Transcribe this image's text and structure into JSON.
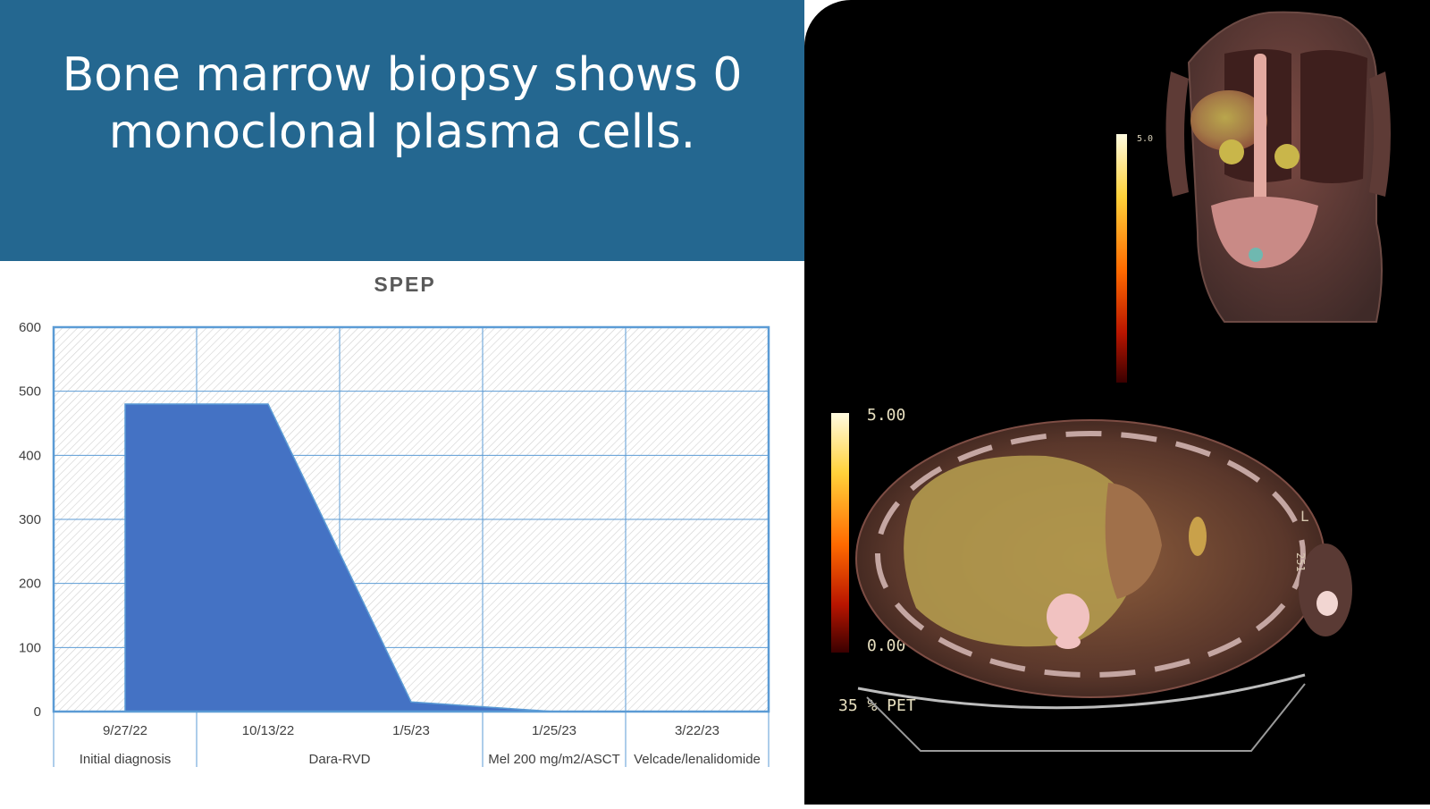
{
  "slide": {
    "title": "Bone marrow biopsy shows 0 monoclonal plasma cells."
  },
  "chart_data": {
    "type": "area",
    "title": "SPEP",
    "categories": [
      "9/27/22",
      "10/13/22",
      "1/5/23",
      "1/25/23",
      "3/22/23"
    ],
    "values": [
      480,
      480,
      15,
      0,
      0
    ],
    "groups": [
      {
        "label": "Initial diagnosis",
        "from": 0,
        "to": 0
      },
      {
        "label": "Dara-RVD",
        "from": 1,
        "to": 2
      },
      {
        "label": "Mel 200 mg/m2/ASCT",
        "from": 3,
        "to": 3
      },
      {
        "label": "Velcade/lenalidomide",
        "from": 4,
        "to": 4
      }
    ],
    "ylim": [
      0,
      600
    ],
    "yticks": [
      0,
      100,
      200,
      300,
      400,
      500,
      600
    ],
    "xlabel": "",
    "ylabel": "",
    "grid": true,
    "colors": {
      "area": "#4472C4",
      "frame": "#5B9BD5",
      "hatch": "#d0d0d0",
      "title": "#595959",
      "tick": "#404040"
    }
  },
  "scans": {
    "coronal_scale_max": "5.0",
    "axial_scale_max": "5.00",
    "axial_scale_min": "0.00",
    "axial_caption": "35 % PET",
    "side_marker": "L",
    "side_number": "251"
  }
}
